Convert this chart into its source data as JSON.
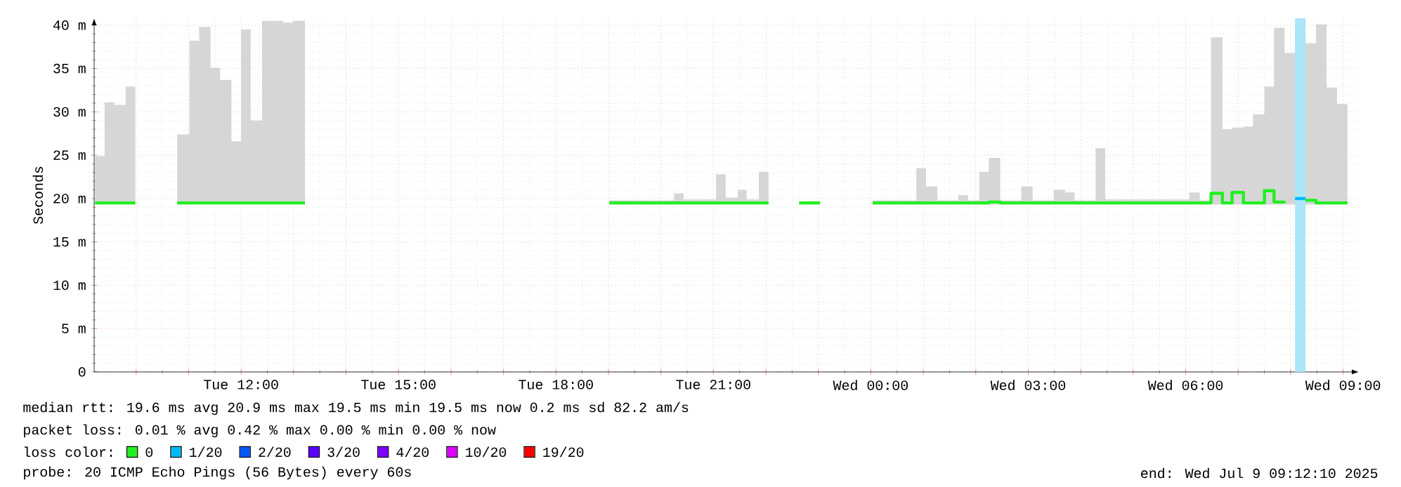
{
  "chart_data": {
    "type": "step",
    "ylabel": "Seconds",
    "x": [
      "2025-07-08T09:13",
      "2025-07-08T09:24",
      "2025-07-08T09:35",
      "2025-07-08T09:48",
      "2025-07-08T09:59",
      "2025-07-08T10:20",
      "2025-07-08T10:47",
      "2025-07-08T11:01",
      "2025-07-08T11:12",
      "2025-07-08T11:25",
      "2025-07-08T11:36",
      "2025-07-08T11:49",
      "2025-07-08T12:00",
      "2025-07-08T12:11",
      "2025-07-08T12:24",
      "2025-07-08T12:35",
      "2025-07-08T12:48",
      "2025-07-08T12:59",
      "2025-07-08T13:13",
      "2025-07-08T16:00",
      "2025-07-08T19:01",
      "2025-07-08T20:15",
      "2025-07-08T20:26",
      "2025-07-08T21:03",
      "2025-07-08T21:14",
      "2025-07-08T21:28",
      "2025-07-08T21:38",
      "2025-07-08T21:52",
      "2025-07-08T22:03",
      "2025-07-08T22:20",
      "2025-07-08T22:38",
      "2025-07-08T23:02",
      "2025-07-08T23:30",
      "2025-07-09T00:02",
      "2025-07-09T00:52",
      "2025-07-09T01:03",
      "2025-07-09T01:16",
      "2025-07-09T01:40",
      "2025-07-09T01:51",
      "2025-07-09T02:04",
      "2025-07-09T02:15",
      "2025-07-09T02:28",
      "2025-07-09T02:52",
      "2025-07-09T03:05",
      "2025-07-09T03:29",
      "2025-07-09T03:42",
      "2025-07-09T03:53",
      "2025-07-09T04:17",
      "2025-07-09T04:28",
      "2025-07-09T06:04",
      "2025-07-09T06:16",
      "2025-07-09T06:29",
      "2025-07-09T06:42",
      "2025-07-09T06:53",
      "2025-07-09T07:06",
      "2025-07-09T07:17",
      "2025-07-09T07:30",
      "2025-07-09T07:41",
      "2025-07-09T07:53",
      "2025-07-09T08:05",
      "2025-07-09T08:17",
      "2025-07-09T08:29",
      "2025-07-09T08:41",
      "2025-07-09T08:53",
      "2025-07-09T09:05"
    ],
    "series": [
      {
        "name": "0",
        "color": "#20f020",
        "values": [
          19.5,
          19.5,
          19.5,
          19.5,
          19.5,
          null,
          19.5,
          19.5,
          19.5,
          19.5,
          19.5,
          19.5,
          19.5,
          19.5,
          19.5,
          19.5,
          19.5,
          19.5,
          19.5,
          null,
          19.5,
          19.5,
          19.5,
          19.5,
          19.5,
          19.5,
          19.5,
          19.5,
          19.5,
          null,
          19.5,
          19.5,
          null,
          19.5,
          19.5,
          19.5,
          19.5,
          19.5,
          19.5,
          19.5,
          19.6,
          19.5,
          19.5,
          19.5,
          19.5,
          19.5,
          19.5,
          19.5,
          19.5,
          19.5,
          19.5,
          20.6,
          19.5,
          20.7,
          19.5,
          19.5,
          20.9,
          19.6,
          19.7,
          null,
          19.8,
          19.5,
          19.5,
          19.5,
          19.5
        ],
        "lower": [
          19.3,
          19.3,
          19.3,
          19.3,
          19.3,
          null,
          19.3,
          19.3,
          19.3,
          19.3,
          19.3,
          19.3,
          19.3,
          19.3,
          19.3,
          19.3,
          19.3,
          19.3,
          19.3,
          null,
          19.3,
          19.3,
          19.3,
          19.3,
          19.3,
          19.3,
          19.3,
          19.3,
          19.3,
          null,
          19.3,
          19.3,
          null,
          19.3,
          19.3,
          19.3,
          19.3,
          19.3,
          19.3,
          19.3,
          19.3,
          19.3,
          19.3,
          19.3,
          19.3,
          19.3,
          19.3,
          19.3,
          19.3,
          19.3,
          19.3,
          19.3,
          19.3,
          19.3,
          19.3,
          19.3,
          19.3,
          19.3,
          19.3,
          19.3,
          19.3,
          19.3,
          19.3,
          19.3,
          19.3
        ],
        "upper": [
          24.9,
          31.1,
          30.8,
          32.9,
          32.9,
          null,
          27.4,
          38.2,
          39.8,
          35.1,
          33.7,
          26.6,
          39.5,
          29.0,
          40.5,
          40.5,
          40.3,
          40.5,
          40.5,
          null,
          19.8,
          20.6,
          19.9,
          22.8,
          20.1,
          21.0,
          19.9,
          23.1,
          23.1,
          null,
          19.6,
          19.6,
          null,
          19.8,
          23.5,
          21.4,
          19.8,
          20.4,
          19.8,
          23.1,
          24.7,
          19.8,
          21.4,
          19.8,
          21.0,
          20.7,
          19.8,
          25.8,
          19.9,
          20.7,
          19.8,
          38.6,
          28.0,
          28.2,
          28.3,
          29.7,
          32.9,
          39.7,
          36.8,
          40.5,
          37.9,
          40.1,
          32.8,
          30.9,
          30.9
        ]
      },
      {
        "name": "1/20",
        "color": "#00b8ff",
        "x": [
          "2025-07-09T08:05",
          "2025-07-09T08:17"
        ],
        "values": [
          20.0,
          20.0
        ]
      },
      {
        "name": "2/20",
        "color": "#0059ff",
        "values": [
          null,
          null,
          null,
          null,
          null,
          null,
          null,
          null,
          null,
          null,
          null,
          null,
          null,
          null,
          null,
          null,
          null,
          null,
          null,
          null,
          null,
          null,
          null,
          null,
          null,
          null,
          null,
          null,
          null,
          null,
          null,
          null,
          null,
          null,
          null,
          null,
          null,
          null,
          null,
          null,
          null,
          null,
          null,
          null,
          null,
          null,
          null,
          null,
          null,
          null,
          null,
          null,
          null,
          null,
          null,
          null,
          null,
          null,
          null,
          null,
          null,
          null,
          null,
          null,
          null
        ]
      },
      {
        "name": "3/20",
        "color": "#5e00ff",
        "values": [
          null,
          null,
          null,
          null,
          null,
          null,
          null,
          null,
          null,
          null,
          null,
          null,
          null,
          null,
          null,
          null,
          null,
          null,
          null,
          null,
          null,
          null,
          null,
          null,
          null,
          null,
          null,
          null,
          null,
          null,
          null,
          null,
          null,
          null,
          null,
          null,
          null,
          null,
          null,
          null,
          null,
          null,
          null,
          null,
          null,
          null,
          null,
          null,
          null,
          null,
          null,
          null,
          null,
          null,
          null,
          null,
          null,
          null,
          null,
          null,
          null,
          null,
          null,
          null,
          null
        ]
      },
      {
        "name": "4/20",
        "color": "#7e00ff",
        "values": [
          null,
          null,
          null,
          null,
          null,
          null,
          null,
          null,
          null,
          null,
          null,
          null,
          null,
          null,
          null,
          null,
          null,
          null,
          null,
          null,
          null,
          null,
          null,
          null,
          null,
          null,
          null,
          null,
          null,
          null,
          null,
          null,
          null,
          null,
          null,
          null,
          null,
          null,
          null,
          null,
          null,
          null,
          null,
          null,
          null,
          null,
          null,
          null,
          null,
          null,
          null,
          null,
          null,
          null,
          null,
          null,
          null,
          null,
          null,
          null,
          null,
          null,
          null,
          null,
          null
        ]
      },
      {
        "name": "10/20",
        "color": "#dd00ff",
        "values": [
          null,
          null,
          null,
          null,
          null,
          null,
          null,
          null,
          null,
          null,
          null,
          null,
          null,
          null,
          null,
          null,
          null,
          null,
          null,
          null,
          null,
          null,
          null,
          null,
          null,
          null,
          null,
          null,
          null,
          null,
          null,
          null,
          null,
          null,
          null,
          null,
          null,
          null,
          null,
          null,
          null,
          null,
          null,
          null,
          null,
          null,
          null,
          null,
          null,
          null,
          null,
          null,
          null,
          null,
          null,
          null,
          null,
          null,
          null,
          null,
          null,
          null,
          null,
          null,
          null
        ]
      },
      {
        "name": "19/20",
        "color": "#ff0000",
        "values": [
          null,
          null,
          null,
          null,
          null,
          null,
          null,
          null,
          null,
          null,
          null,
          null,
          null,
          null,
          null,
          null,
          null,
          null,
          null,
          null,
          null,
          null,
          null,
          null,
          null,
          null,
          null,
          null,
          null,
          null,
          null,
          null,
          null,
          null,
          null,
          null,
          null,
          null,
          null,
          null,
          null,
          null,
          null,
          null,
          null,
          null,
          null,
          null,
          null,
          null,
          null,
          null,
          null,
          null,
          null,
          null,
          null,
          null,
          null,
          null,
          null,
          null,
          null,
          null,
          null
        ]
      }
    ],
    "bands": [
      {
        "axis": "x",
        "from": "2025-07-09T08:05",
        "to": "2025-07-09T08:17",
        "color": "#aae6f8"
      }
    ],
    "xlim": [
      "2025-07-08T09:12",
      "2025-07-09T09:18"
    ],
    "ylim": [
      0,
      40.8
    ],
    "xticks": [
      {
        "value": "2025-07-08T10:00",
        "label": null
      },
      {
        "value": "2025-07-08T11:00",
        "label": null
      },
      {
        "value": "2025-07-08T12:00",
        "label": "Tue 12:00"
      },
      {
        "value": "2025-07-08T13:00",
        "label": null
      },
      {
        "value": "2025-07-08T14:00",
        "label": null
      },
      {
        "value": "2025-07-08T15:00",
        "label": "Tue 15:00"
      },
      {
        "value": "2025-07-08T16:00",
        "label": null
      },
      {
        "value": "2025-07-08T17:00",
        "label": null
      },
      {
        "value": "2025-07-08T18:00",
        "label": "Tue 18:00"
      },
      {
        "value": "2025-07-08T19:00",
        "label": null
      },
      {
        "value": "2025-07-08T20:00",
        "label": null
      },
      {
        "value": "2025-07-08T21:00",
        "label": "Tue 21:00"
      },
      {
        "value": "2025-07-08T22:00",
        "label": null
      },
      {
        "value": "2025-07-08T23:00",
        "label": null
      },
      {
        "value": "2025-07-09T00:00",
        "label": "Wed 00:00"
      },
      {
        "value": "2025-07-09T01:00",
        "label": null
      },
      {
        "value": "2025-07-09T02:00",
        "label": null
      },
      {
        "value": "2025-07-09T03:00",
        "label": "Wed 03:00"
      },
      {
        "value": "2025-07-09T04:00",
        "label": null
      },
      {
        "value": "2025-07-09T05:00",
        "label": null
      },
      {
        "value": "2025-07-09T06:00",
        "label": "Wed 06:00"
      },
      {
        "value": "2025-07-09T07:00",
        "label": null
      },
      {
        "value": "2025-07-09T08:00",
        "label": null
      },
      {
        "value": "2025-07-09T09:00",
        "label": "Wed 09:00"
      }
    ],
    "yticks": [
      0,
      {
        "value": 5,
        "label": "5 m"
      },
      {
        "value": 10,
        "label": "10 m"
      },
      {
        "value": 15,
        "label": "15 m"
      },
      {
        "value": 20,
        "label": "20 m"
      },
      {
        "value": 25,
        "label": "25 m"
      },
      {
        "value": 30,
        "label": "30 m"
      },
      {
        "value": 35,
        "label": "35 m"
      },
      {
        "value": 40,
        "label": "40 m"
      }
    ],
    "grid": true,
    "legend": "bottom",
    "legend_title": "loss color:",
    "annotations": [
      "median rtt: 19.6 ms avg 20.9 ms max 19.5 ms min 19.5 ms now 0.2 ms sd 82.2 am/s",
      "packet loss: 0.01 % avg 0.42 % max 0.00 % min 0.00 % now",
      "probe: 20 ICMP Echo Pings (56 Bytes) every 60s",
      "end: Wed Jul 9 09:12:10 2025"
    ]
  }
}
